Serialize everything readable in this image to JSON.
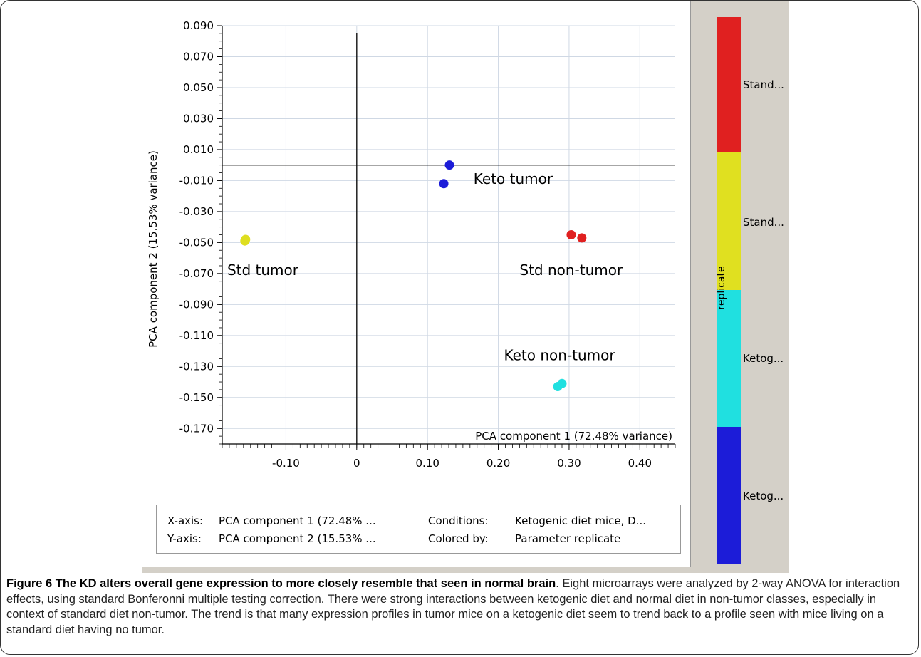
{
  "chart_data": {
    "type": "scatter",
    "xlabel": "PCA component 1 (72.48% variance)",
    "ylabel": "PCA component 2 (15.53% variance)",
    "xlim": [
      -0.19,
      0.45
    ],
    "ylim": [
      -0.18,
      0.09
    ],
    "x_ticks": [
      -0.1,
      0,
      0.1,
      0.2,
      0.3,
      0.4
    ],
    "x_tick_labels": [
      "-0.10",
      "0",
      "0.10",
      "0.20",
      "0.30",
      "0.40"
    ],
    "y_ticks": [
      0.09,
      0.07,
      0.05,
      0.03,
      0.01,
      -0.01,
      -0.03,
      -0.05,
      -0.07,
      -0.09,
      -0.11,
      -0.13,
      -0.15,
      -0.17
    ],
    "y_tick_labels": [
      "0.090",
      "0.070",
      "0.050",
      "0.030",
      "0.010",
      "-0.010",
      "-0.030",
      "-0.050",
      "-0.070",
      "-0.090",
      "-0.110",
      "-0.130",
      "-0.150",
      "-0.170"
    ],
    "grid": true,
    "points": [
      {
        "x": 0.131,
        "y": 0.0,
        "color": "#1c1cd8"
      },
      {
        "x": 0.123,
        "y": -0.012,
        "color": "#1c1cd8"
      },
      {
        "x": -0.157,
        "y": -0.048,
        "color": "#dede20"
      },
      {
        "x": -0.158,
        "y": -0.049,
        "color": "#dede20"
      },
      {
        "x": 0.303,
        "y": -0.045,
        "color": "#e02020"
      },
      {
        "x": 0.318,
        "y": -0.047,
        "color": "#e02020"
      },
      {
        "x": 0.284,
        "y": -0.143,
        "color": "#20e0e0"
      },
      {
        "x": 0.29,
        "y": -0.141,
        "color": "#20e0e0"
      }
    ],
    "annotations": [
      {
        "text": "Keto tumor",
        "x": 0.165,
        "y": -0.012
      },
      {
        "text": "Std tumor",
        "x": -0.183,
        "y": -0.071
      },
      {
        "text": "Std non-tumor",
        "x": 0.23,
        "y": -0.071
      },
      {
        "text": "Keto non-tumor",
        "x": 0.208,
        "y": -0.126
      }
    ],
    "legend": {
      "title": "replicate",
      "placement": "right",
      "entries": [
        {
          "label": "Stand...",
          "color": "#e02020"
        },
        {
          "label": "Stand...",
          "color": "#e0e020"
        },
        {
          "label": "Ketog...",
          "color": "#20e0e0"
        },
        {
          "label": "Ketog...",
          "color": "#1c1cd8"
        }
      ]
    }
  },
  "info_box": {
    "x_axis_label": "X-axis:",
    "x_axis_value": "PCA component 1 (72.48% ...",
    "y_axis_label": "Y-axis:",
    "y_axis_value": "PCA component 2 (15.53% ...",
    "conditions_label": "Conditions:",
    "conditions_value": "Ketogenic diet mice, D...",
    "colored_label": "Colored by:",
    "colored_value": "Parameter replicate"
  },
  "caption": {
    "title": "Figure 6 The KD alters overall gene expression to more closely resemble that seen in normal brain",
    "body": ". Eight microarrays were analyzed by 2-way ANOVA for interaction effects, using standard Bonferonni multiple testing correction. There were strong interactions between ketogenic diet and normal diet in non-tumor classes, especially in context of standard diet non-tumor. The trend is that many expression profiles in tumor mice on a ketogenic diet seem to trend back to a profile seen with mice living on a standard diet having no tumor."
  }
}
